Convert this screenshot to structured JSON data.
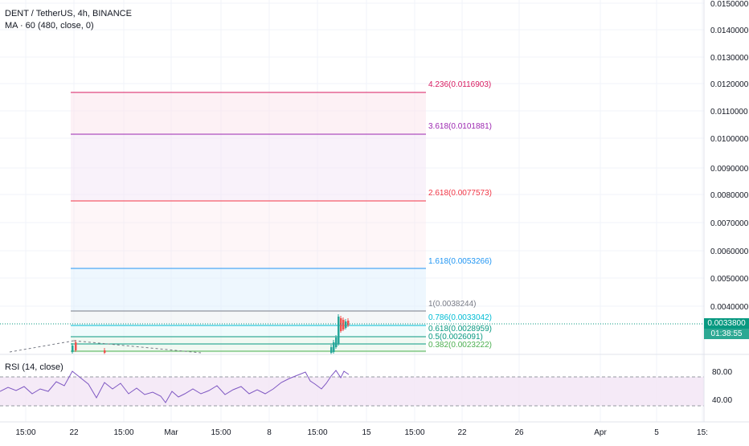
{
  "header": {
    "title": "DENT / TetherUS, 4h, BINANCE",
    "indicator": "MA · 60 (480, close, 0)",
    "rsi_label": "RSI (14, close)"
  },
  "price_axis": {
    "labels": [
      "0.0150000",
      "0.0140000",
      "0.0130000",
      "0.0120000",
      "0.0110000",
      "0.0100000",
      "0.0090000",
      "0.0080000",
      "0.0070000",
      "0.0060000",
      "0.0050000",
      "0.0040000"
    ],
    "last_price": "0.0033800",
    "countdown": "01:38:55"
  },
  "rsi_axis": {
    "labels": [
      "80.00",
      "40.00"
    ]
  },
  "time_axis": {
    "labels": [
      "15:00",
      "22",
      "15:00",
      "Mar",
      "15:00",
      "8",
      "15:00",
      "15",
      "15:00",
      "22",
      "26",
      "Apr",
      "5",
      "15:"
    ]
  },
  "fib_levels": [
    {
      "label": "4.236(0.0116903)",
      "color": "#d81b60"
    },
    {
      "label": "3.618(0.0101881)",
      "color": "#9c27b0"
    },
    {
      "label": "2.618(0.0077573)",
      "color": "#f23645"
    },
    {
      "label": "1.618(0.0053266)",
      "color": "#2196f3"
    },
    {
      "label": "1(0.0038244)",
      "color": "#787b86"
    },
    {
      "label": "0.786(0.0033042)",
      "color": "#00bcd4"
    },
    {
      "label": "0.618(0.0028959)",
      "color": "#089981"
    },
    {
      "label": "0.5(0.0026091)",
      "color": "#089981"
    },
    {
      "label": "0.382(0.0023222)",
      "color": "#4caf50"
    }
  ],
  "colors": {
    "up": "#26a69a",
    "down": "#ef5350",
    "rsi_line": "#7e57c2",
    "rsi_band": "#f3e5f5",
    "last_price_bg": "#089981"
  }
}
